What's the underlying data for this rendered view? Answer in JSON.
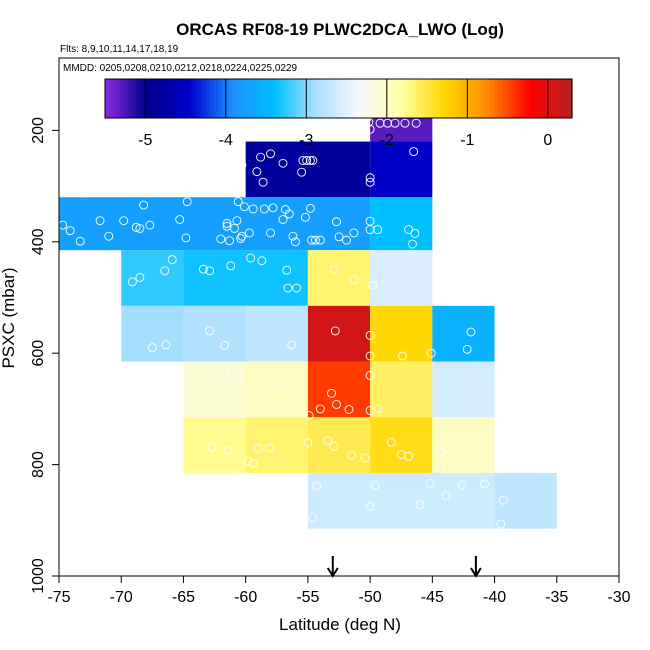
{
  "chart_data": {
    "type": "heatmap",
    "title": "ORCAS RF08-19 PLWC2DCA_LWO (Log)",
    "flights_label": "Flts: 8,9,10,11,14,17,18,19",
    "dates_label": "MMDD: 0205,0208,0210,0212,0218,0224,0225,0229",
    "xlabel": "Latitude (deg N)",
    "ylabel": "PSXC (mbar)",
    "xlim": [
      -75,
      -30
    ],
    "ylim": [
      1000,
      70
    ],
    "x_ticks": [
      -75,
      -70,
      -65,
      -60,
      -55,
      -50,
      -45,
      -40,
      -35,
      -30
    ],
    "y_ticks": [
      200,
      400,
      600,
      800,
      1000
    ],
    "colorbar": {
      "range": [
        -5.5,
        0.3
      ],
      "ticks": [
        -5,
        -4,
        -3,
        -2,
        -1,
        0
      ],
      "colors": [
        "#8a2be2",
        "#00008b",
        "#0000cd",
        "#1e90ff",
        "#00bfff",
        "#b0e0ff",
        "#f8f8ff",
        "#ffffa0",
        "#ffd700",
        "#ff8c00",
        "#ff0000",
        "#b22222"
      ]
    },
    "cells": [
      {
        "lat": [
          -50,
          -45
        ],
        "p": [
          110,
          220
        ],
        "value": -5.3
      },
      {
        "lat": [
          -60,
          -50
        ],
        "p": [
          220,
          320
        ],
        "value": -4.85
      },
      {
        "lat": [
          -50,
          -45
        ],
        "p": [
          220,
          320
        ],
        "value": -4.5
      },
      {
        "lat": [
          -75,
          -50
        ],
        "p": [
          320,
          415
        ],
        "value": -3.75
      },
      {
        "lat": [
          -50,
          -45
        ],
        "p": [
          320,
          415
        ],
        "value": -3.4
      },
      {
        "lat": [
          -70,
          -65
        ],
        "p": [
          415,
          515
        ],
        "value": -3.25
      },
      {
        "lat": [
          -65,
          -55
        ],
        "p": [
          415,
          515
        ],
        "value": -3.35
      },
      {
        "lat": [
          -55,
          -50
        ],
        "p": [
          415,
          515
        ],
        "value": -1.65
      },
      {
        "lat": [
          -50,
          -45
        ],
        "p": [
          415,
          515
        ],
        "value": -2.55
      },
      {
        "lat": [
          -70,
          -65
        ],
        "p": [
          515,
          615
        ],
        "value": -2.9
      },
      {
        "lat": [
          -65,
          -60
        ],
        "p": [
          515,
          615
        ],
        "value": -2.85
      },
      {
        "lat": [
          -60,
          -55
        ],
        "p": [
          515,
          615
        ],
        "value": -2.75
      },
      {
        "lat": [
          -55,
          -50
        ],
        "p": [
          515,
          615
        ],
        "value": 0.1
      },
      {
        "lat": [
          -50,
          -45
        ],
        "p": [
          515,
          615
        ],
        "value": -1.3
      },
      {
        "lat": [
          -45,
          -40
        ],
        "p": [
          515,
          615
        ],
        "value": -3.55
      },
      {
        "lat": [
          -65,
          -60
        ],
        "p": [
          615,
          715
        ],
        "value": -2.1
      },
      {
        "lat": [
          -60,
          -55
        ],
        "p": [
          615,
          715
        ],
        "value": -2.0
      },
      {
        "lat": [
          -55,
          -50
        ],
        "p": [
          615,
          715
        ],
        "value": -0.45
      },
      {
        "lat": [
          -50,
          -45
        ],
        "p": [
          615,
          715
        ],
        "value": -1.6
      },
      {
        "lat": [
          -45,
          -40
        ],
        "p": [
          615,
          715
        ],
        "value": -2.6
      },
      {
        "lat": [
          -65,
          -60
        ],
        "p": [
          715,
          815
        ],
        "value": -1.75
      },
      {
        "lat": [
          -60,
          -55
        ],
        "p": [
          715,
          815
        ],
        "value": -1.65
      },
      {
        "lat": [
          -55,
          -50
        ],
        "p": [
          715,
          815
        ],
        "value": -1.55
      },
      {
        "lat": [
          -50,
          -45
        ],
        "p": [
          715,
          815
        ],
        "value": -1.35
      },
      {
        "lat": [
          -45,
          -40
        ],
        "p": [
          715,
          815
        ],
        "value": -2.0
      },
      {
        "lat": [
          -55,
          -40
        ],
        "p": [
          815,
          915
        ],
        "value": -2.65
      },
      {
        "lat": [
          -40,
          -35
        ],
        "p": [
          815,
          915
        ],
        "value": -2.75
      }
    ],
    "arrows_lat": [
      -53.0,
      -41.5
    ],
    "points": [
      [
        -50.3,
        180
      ],
      [
        -50.1,
        185
      ],
      [
        -49.2,
        187
      ],
      [
        -48.6,
        187
      ],
      [
        -48.0,
        187
      ],
      [
        -47.2,
        187
      ],
      [
        -46.3,
        187
      ],
      [
        -50.0,
        198
      ],
      [
        -58.0,
        242
      ],
      [
        -58.8,
        248
      ],
      [
        -55.4,
        254
      ],
      [
        -55.1,
        254
      ],
      [
        -54.8,
        254
      ],
      [
        -54.6,
        254
      ],
      [
        -57.0,
        259
      ],
      [
        -60.3,
        262
      ],
      [
        -59.1,
        274
      ],
      [
        -55.5,
        275
      ],
      [
        -58.6,
        293
      ],
      [
        -46.5,
        238
      ],
      [
        -50.0,
        285
      ],
      [
        -50.0,
        293
      ],
      [
        -73.3,
        312
      ],
      [
        -72.7,
        312
      ],
      [
        -68.2,
        334
      ],
      [
        -64.7,
        328
      ],
      [
        -60.6,
        328
      ],
      [
        -60.1,
        337
      ],
      [
        -59.4,
        341
      ],
      [
        -58.5,
        341
      ],
      [
        -57.8,
        339
      ],
      [
        -56.8,
        342
      ],
      [
        -54.8,
        340
      ],
      [
        -57.0,
        360
      ],
      [
        -56.5,
        350
      ],
      [
        -55.2,
        356
      ],
      [
        -52.7,
        364
      ],
      [
        -65.3,
        360
      ],
      [
        -61.5,
        367
      ],
      [
        -61.5,
        372
      ],
      [
        -60.7,
        362
      ],
      [
        -60.9,
        376
      ],
      [
        -59.7,
        384
      ],
      [
        -60.3,
        390
      ],
      [
        -58.0,
        384
      ],
      [
        -56.2,
        390
      ],
      [
        -56.0,
        400
      ],
      [
        -54.7,
        397
      ],
      [
        -54.4,
        397
      ],
      [
        -54.0,
        397
      ],
      [
        -51.9,
        397
      ],
      [
        -51.3,
        384
      ],
      [
        -52.5,
        391
      ],
      [
        -64.8,
        393
      ],
      [
        -61.3,
        398
      ],
      [
        -60.4,
        394
      ],
      [
        -62.0,
        395
      ],
      [
        -68.8,
        374
      ],
      [
        -68.5,
        376
      ],
      [
        -67.7,
        370
      ],
      [
        -74.7,
        370
      ],
      [
        -74.1,
        380
      ],
      [
        -71.7,
        362
      ],
      [
        -69.8,
        362
      ],
      [
        -71.0,
        390
      ],
      [
        -73.3,
        399
      ],
      [
        -50.0,
        363
      ],
      [
        -50.0,
        378
      ],
      [
        -49.4,
        378
      ],
      [
        -46.9,
        378
      ],
      [
        -46.4,
        385
      ],
      [
        -46.6,
        404
      ],
      [
        -69.1,
        472
      ],
      [
        -68.5,
        464
      ],
      [
        -66.5,
        452
      ],
      [
        -65.9,
        432
      ],
      [
        -63.4,
        449
      ],
      [
        -62.9,
        452
      ],
      [
        -61.2,
        443
      ],
      [
        -59.6,
        429
      ],
      [
        -58.7,
        434
      ],
      [
        -56.6,
        483
      ],
      [
        -55.9,
        483
      ],
      [
        -56.7,
        451
      ],
      [
        -52.9,
        450
      ],
      [
        -51.3,
        468
      ],
      [
        -49.8,
        478
      ],
      [
        -67.5,
        590
      ],
      [
        -66.4,
        585
      ],
      [
        -62.9,
        560
      ],
      [
        -61.7,
        586
      ],
      [
        -56.3,
        585
      ],
      [
        -52.8,
        560
      ],
      [
        -50.0,
        568
      ],
      [
        -50.0,
        605
      ],
      [
        -47.4,
        605
      ],
      [
        -45.1,
        600
      ],
      [
        -41.9,
        562
      ],
      [
        -42.2,
        593
      ],
      [
        -62.8,
        640
      ],
      [
        -61.2,
        635
      ],
      [
        -60.6,
        642
      ],
      [
        -57.3,
        653
      ],
      [
        -53.1,
        672
      ],
      [
        -52.7,
        692
      ],
      [
        -51.7,
        701
      ],
      [
        -54.0,
        700
      ],
      [
        -50.0,
        640
      ],
      [
        -49.3,
        700
      ],
      [
        -50.0,
        703
      ],
      [
        -54.9,
        712
      ],
      [
        -66.9,
        728
      ],
      [
        -65.8,
        752
      ],
      [
        -62.7,
        769
      ],
      [
        -61.4,
        775
      ],
      [
        -59.0,
        771
      ],
      [
        -59.8,
        794
      ],
      [
        -59.4,
        798
      ],
      [
        -58.1,
        770
      ],
      [
        -55.0,
        761
      ],
      [
        -53.4,
        757
      ],
      [
        -52.9,
        767
      ],
      [
        -51.5,
        783
      ],
      [
        -50.4,
        788
      ],
      [
        -48.3,
        760
      ],
      [
        -47.5,
        782
      ],
      [
        -46.9,
        785
      ],
      [
        -44.3,
        777
      ],
      [
        -44.4,
        804
      ],
      [
        -54.3,
        838
      ],
      [
        -54.6,
        895
      ],
      [
        -49.6,
        837
      ],
      [
        -45.2,
        834
      ],
      [
        -42.6,
        837
      ],
      [
        -43.9,
        856
      ],
      [
        -40.8,
        835
      ],
      [
        -39.3,
        864
      ],
      [
        -39.5,
        907
      ],
      [
        -46.0,
        872
      ],
      [
        -50.0,
        875
      ]
    ]
  }
}
